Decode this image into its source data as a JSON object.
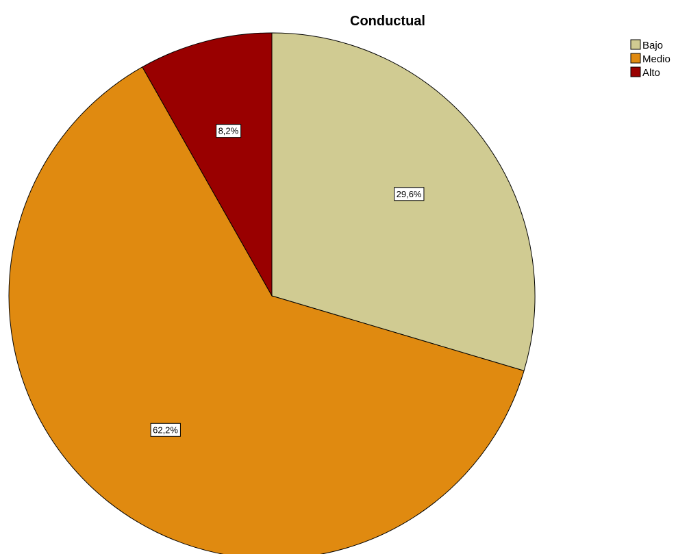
{
  "chart_data": {
    "type": "pie",
    "title": "Conductual",
    "categories": [
      "Bajo",
      "Medio",
      "Alto"
    ],
    "values": [
      29.6,
      62.2,
      8.2
    ],
    "labels": [
      "29,6%",
      "62,2%",
      "8,2%"
    ],
    "colors": [
      "#D0CB92",
      "#E08A10",
      "#990000"
    ],
    "start_angle_deg": 0,
    "direction": "clockwise",
    "legend": {
      "position": "top-right",
      "entries": [
        "Bajo",
        "Medio",
        "Alto"
      ]
    }
  }
}
